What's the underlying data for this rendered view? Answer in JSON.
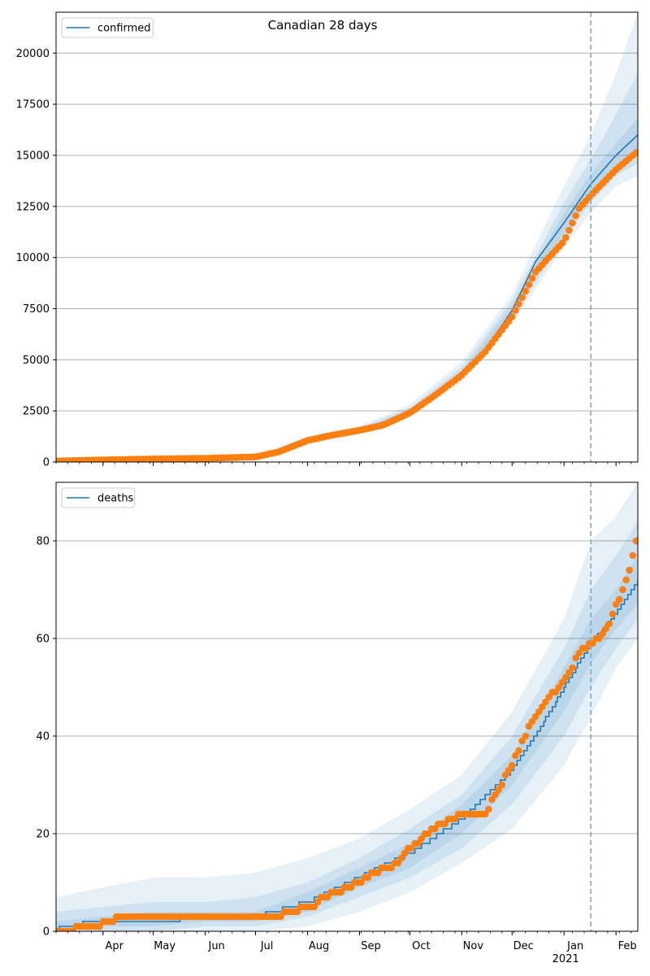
{
  "title": "Canadian 28 days",
  "colors": {
    "model": "#1f77b4",
    "observed": "#ff7f0e",
    "band": "#1f77b4",
    "grid": "#b0b0b0",
    "forecast_line": "#6baed6"
  },
  "chart_data": [
    {
      "type": "line",
      "name": "confirmed",
      "legend": "top-left",
      "grid": "horizontal",
      "x_range": [
        "2020-03-04",
        "2021-02-14"
      ],
      "ylim": [
        0,
        22000
      ],
      "yticks": [
        0,
        2500,
        5000,
        7500,
        10000,
        12500,
        15000,
        17500,
        20000
      ],
      "forecast_start": "2021-01-17",
      "series": [
        {
          "name": "confirmed",
          "role": "model",
          "x": [
            "2020-03-04",
            "2020-04-01",
            "2020-05-01",
            "2020-06-01",
            "2020-07-01",
            "2020-07-15",
            "2020-08-01",
            "2020-08-15",
            "2020-09-01",
            "2020-09-15",
            "2020-10-01",
            "2020-10-15",
            "2020-11-01",
            "2020-11-15",
            "2020-12-01",
            "2020-12-15",
            "2021-01-01",
            "2021-01-17",
            "2021-02-01",
            "2021-02-14"
          ],
          "values": [
            50,
            100,
            150,
            180,
            250,
            500,
            1050,
            1300,
            1550,
            1850,
            2450,
            3250,
            4300,
            5500,
            7400,
            9800,
            11700,
            13600,
            15000,
            16000
          ]
        },
        {
          "role": "observed",
          "x": [
            "2020-03-04",
            "2020-04-01",
            "2020-05-01",
            "2020-06-01",
            "2020-07-01",
            "2020-07-15",
            "2020-08-01",
            "2020-08-15",
            "2020-09-01",
            "2020-09-15",
            "2020-10-01",
            "2020-10-15",
            "2020-11-01",
            "2020-11-15",
            "2020-12-01",
            "2020-12-15",
            "2021-01-01",
            "2021-01-10",
            "2021-01-17",
            "2021-02-01",
            "2021-02-14"
          ],
          "values": [
            50,
            100,
            150,
            180,
            250,
            500,
            1050,
            1300,
            1550,
            1800,
            2400,
            3200,
            4250,
            5400,
            7100,
            9300,
            10800,
            12400,
            13050,
            14300,
            15200
          ]
        }
      ],
      "bands": [
        {
          "x": [
            "2020-03-04",
            "2020-07-01",
            "2020-08-01",
            "2020-09-01",
            "2020-10-01",
            "2020-11-01",
            "2020-12-01",
            "2021-01-01",
            "2021-01-17",
            "2021-02-01",
            "2021-02-14"
          ],
          "low": [
            0,
            200,
            900,
            1400,
            2200,
            3900,
            6800,
            10500,
            12200,
            13500,
            14000
          ],
          "high": [
            100,
            320,
            1250,
            1750,
            2800,
            4900,
            8200,
            13500,
            16000,
            19000,
            22000
          ]
        },
        {
          "x": [
            "2020-03-04",
            "2020-07-01",
            "2020-08-01",
            "2020-09-01",
            "2020-10-01",
            "2020-11-01",
            "2020-12-01",
            "2021-01-01",
            "2021-01-17",
            "2021-02-01",
            "2021-02-14"
          ],
          "low": [
            20,
            220,
            950,
            1460,
            2280,
            4050,
            7000,
            10900,
            12700,
            14000,
            14600
          ],
          "high": [
            80,
            290,
            1170,
            1660,
            2650,
            4650,
            7900,
            12700,
            14800,
            17000,
            19000
          ]
        },
        {
          "x": [
            "2020-03-04",
            "2020-07-01",
            "2020-08-01",
            "2020-09-01",
            "2020-10-01",
            "2020-11-01",
            "2020-12-01",
            "2021-01-01",
            "2021-01-17",
            "2021-02-01",
            "2021-02-14"
          ],
          "low": [
            35,
            235,
            1000,
            1500,
            2360,
            4150,
            7150,
            11200,
            13100,
            14500,
            15300
          ],
          "high": [
            65,
            270,
            1100,
            1600,
            2550,
            4450,
            7650,
            12200,
            14100,
            15600,
            16800
          ]
        }
      ]
    },
    {
      "type": "line",
      "name": "deaths",
      "legend": "top-left",
      "grid": "horizontal",
      "x_range": [
        "2020-03-04",
        "2021-02-14"
      ],
      "ylim": [
        0,
        92
      ],
      "yticks": [
        0,
        20,
        40,
        60,
        80
      ],
      "forecast_start": "2021-01-17",
      "series": [
        {
          "name": "deaths",
          "role": "model",
          "x": [
            "2020-03-04",
            "2020-03-07",
            "2020-04-01",
            "2020-05-01",
            "2020-06-01",
            "2020-07-01",
            "2020-08-01",
            "2020-09-01",
            "2020-10-01",
            "2020-11-01",
            "2020-12-01",
            "2020-12-15",
            "2021-01-01",
            "2021-01-17",
            "2021-02-01",
            "2021-02-14"
          ],
          "values": [
            0,
            1,
            2,
            2,
            3,
            3,
            6,
            11,
            16,
            23,
            33,
            40,
            50,
            59,
            65,
            72
          ]
        },
        {
          "role": "observed",
          "x": [
            "2020-03-04",
            "2020-03-28",
            "2020-04-12",
            "2020-05-15",
            "2020-06-15",
            "2020-07-16",
            "2020-07-20",
            "2020-08-05",
            "2020-08-10",
            "2020-08-25",
            "2020-09-05",
            "2020-09-15",
            "2020-09-20",
            "2020-10-01",
            "2020-10-15",
            "2020-11-01",
            "2020-11-15",
            "2020-12-01",
            "2020-12-10",
            "2020-12-20",
            "2021-01-01",
            "2021-01-10",
            "2021-01-17",
            "2021-01-25",
            "2021-02-05",
            "2021-02-10",
            "2021-02-14"
          ],
          "values": [
            0,
            1,
            3,
            3,
            3,
            3,
            4,
            5,
            7,
            9,
            11,
            13,
            13,
            17,
            21,
            24,
            24,
            34,
            41,
            47,
            51,
            57,
            59,
            61,
            70,
            75,
            81
          ]
        }
      ],
      "bands": [
        {
          "x": [
            "2020-03-04",
            "2020-04-01",
            "2020-05-01",
            "2020-06-01",
            "2020-07-01",
            "2020-08-01",
            "2020-09-01",
            "2020-10-01",
            "2020-11-01",
            "2020-12-01",
            "2021-01-01",
            "2021-01-17",
            "2021-02-01",
            "2021-02-14"
          ],
          "low": [
            0,
            0,
            0,
            0,
            0,
            1,
            4,
            8,
            14,
            21,
            34,
            44,
            54,
            60
          ],
          "high": [
            7,
            9,
            11,
            11,
            12,
            15,
            19,
            25,
            32,
            45,
            64,
            80,
            85,
            92
          ]
        },
        {
          "x": [
            "2020-03-04",
            "2020-04-01",
            "2020-05-01",
            "2020-06-01",
            "2020-07-01",
            "2020-08-01",
            "2020-09-01",
            "2020-10-01",
            "2020-11-01",
            "2020-12-01",
            "2021-01-01",
            "2021-01-17",
            "2021-02-01",
            "2021-02-14"
          ],
          "low": [
            0,
            0,
            0,
            1,
            1,
            3,
            7,
            11,
            17,
            26,
            40,
            50,
            58,
            64
          ],
          "high": [
            4,
            5,
            6,
            6,
            7,
            10,
            15,
            21,
            28,
            40,
            58,
            70,
            77,
            84
          ]
        },
        {
          "x": [
            "2020-03-04",
            "2020-04-01",
            "2020-05-01",
            "2020-06-01",
            "2020-07-01",
            "2020-08-01",
            "2020-09-01",
            "2020-10-01",
            "2020-11-01",
            "2020-12-01",
            "2021-01-01",
            "2021-01-17",
            "2021-02-01",
            "2021-02-14"
          ],
          "low": [
            0,
            1,
            1,
            2,
            2,
            4,
            9,
            13,
            20,
            30,
            45,
            55,
            62,
            67
          ],
          "high": [
            2,
            3,
            4,
            4,
            4,
            8,
            13,
            18,
            26,
            36,
            54,
            64,
            70,
            77
          ]
        }
      ]
    }
  ],
  "x_axis": {
    "month_ticks": [
      {
        "date": "2020-04-01",
        "label": "Apr"
      },
      {
        "date": "2020-05-01",
        "label": "May"
      },
      {
        "date": "2020-06-01",
        "label": "Jun"
      },
      {
        "date": "2020-07-01",
        "label": "Jul"
      },
      {
        "date": "2020-08-01",
        "label": "Aug"
      },
      {
        "date": "2020-09-01",
        "label": "Sep"
      },
      {
        "date": "2020-10-01",
        "label": "Oct"
      },
      {
        "date": "2020-11-01",
        "label": "Nov"
      },
      {
        "date": "2020-12-01",
        "label": "Dec"
      },
      {
        "date": "2021-01-01",
        "label": "Jan"
      },
      {
        "date": "2021-02-01",
        "label": "Feb"
      }
    ],
    "year_label": {
      "date": "2021-01-01",
      "label": "2021"
    }
  }
}
